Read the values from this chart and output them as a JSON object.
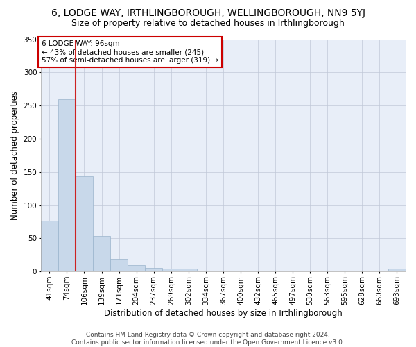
{
  "title": "6, LODGE WAY, IRTHLINGBOROUGH, WELLINGBOROUGH, NN9 5YJ",
  "subtitle": "Size of property relative to detached houses in Irthlingborough",
  "xlabel": "Distribution of detached houses by size in Irthlingborough",
  "ylabel": "Number of detached properties",
  "footer_line1": "Contains HM Land Registry data © Crown copyright and database right 2024.",
  "footer_line2": "Contains public sector information licensed under the Open Government Licence v3.0.",
  "categories": [
    "41sqm",
    "74sqm",
    "106sqm",
    "139sqm",
    "171sqm",
    "204sqm",
    "237sqm",
    "269sqm",
    "302sqm",
    "334sqm",
    "367sqm",
    "400sqm",
    "432sqm",
    "465sqm",
    "497sqm",
    "530sqm",
    "563sqm",
    "595sqm",
    "628sqm",
    "660sqm",
    "693sqm"
  ],
  "values": [
    77,
    260,
    144,
    54,
    19,
    10,
    5,
    4,
    4,
    0,
    0,
    0,
    0,
    0,
    0,
    0,
    0,
    0,
    0,
    0,
    4
  ],
  "bar_color": "#c8d8ea",
  "bar_edge_color": "#9ab4cc",
  "grid_color": "#c0c8d8",
  "bg_color": "#e8eef8",
  "vline_color": "#cc2222",
  "vline_x_index": 1.5,
  "annotation_text": "6 LODGE WAY: 96sqm\n← 43% of detached houses are smaller (245)\n57% of semi-detached houses are larger (319) →",
  "annotation_box_color": "#ffffff",
  "annotation_box_edge": "#cc0000",
  "ylim": [
    0,
    350
  ],
  "yticks": [
    0,
    50,
    100,
    150,
    200,
    250,
    300,
    350
  ],
  "title_fontsize": 10,
  "subtitle_fontsize": 9,
  "axis_label_fontsize": 8.5,
  "tick_fontsize": 7.5,
  "footer_fontsize": 6.5
}
